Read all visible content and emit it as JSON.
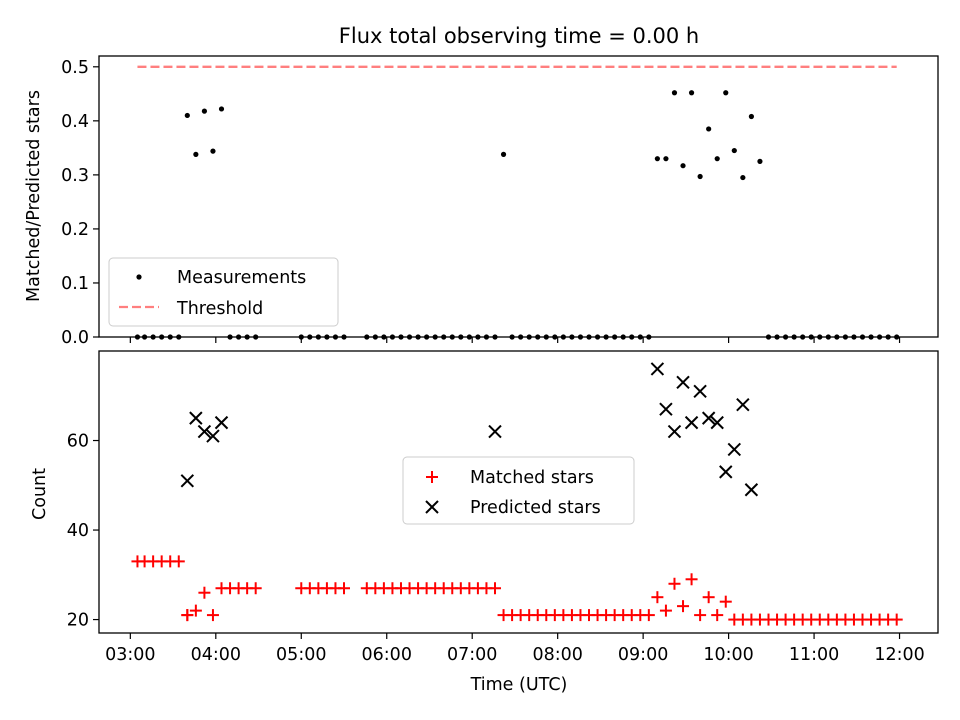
{
  "figure": {
    "title": "Flux total observing time = 0.00 h"
  },
  "x_axis": {
    "label": "Time (UTC)",
    "range": [
      "02:38",
      "12:27"
    ],
    "ticks": [
      "03:00",
      "04:00",
      "05:00",
      "06:00",
      "07:00",
      "08:00",
      "09:00",
      "10:00",
      "11:00",
      "12:00"
    ]
  },
  "chart_data": [
    {
      "type": "scatter",
      "ylabel": "Matched/Predicted stars",
      "ylim": [
        0,
        0.52
      ],
      "yticks": [
        "0.0",
        "0.1",
        "0.2",
        "0.3",
        "0.4",
        "0.5"
      ],
      "grid": false,
      "legend": {
        "position": "lower-left",
        "entries": [
          "Measurements",
          "Threshold"
        ]
      },
      "series": [
        {
          "name": "Measurements",
          "color": "#000000",
          "marker": "dot",
          "x": [
            "03:05",
            "03:10",
            "03:16",
            "03:22",
            "03:28",
            "03:34",
            "03:40",
            "03:46",
            "03:52",
            "03:58",
            "04:04",
            "04:10",
            "04:16",
            "04:22",
            "04:28",
            "05:00",
            "05:06",
            "05:12",
            "05:18",
            "05:24",
            "05:30",
            "05:46",
            "05:52",
            "05:58",
            "06:04",
            "06:10",
            "06:16",
            "06:22",
            "06:28",
            "06:34",
            "06:40",
            "06:46",
            "06:52",
            "06:58",
            "07:04",
            "07:10",
            "07:16",
            "07:22",
            "07:28",
            "07:34",
            "07:40",
            "07:46",
            "07:52",
            "07:58",
            "08:04",
            "08:10",
            "08:16",
            "08:22",
            "08:28",
            "08:34",
            "08:40",
            "08:46",
            "08:52",
            "08:58",
            "09:04",
            "09:10",
            "09:16",
            "09:22",
            "09:28",
            "09:34",
            "09:40",
            "09:46",
            "09:52",
            "09:58",
            "10:04",
            "10:10",
            "10:16",
            "10:22",
            "10:28",
            "10:34",
            "10:40",
            "10:46",
            "10:52",
            "10:58",
            "11:04",
            "11:10",
            "11:16",
            "11:22",
            "11:28",
            "11:34",
            "11:40",
            "11:46",
            "11:52",
            "11:58"
          ],
          "y": [
            0,
            0,
            0,
            0,
            0,
            0,
            0.41,
            0.338,
            0.418,
            0.344,
            0.422,
            0,
            0,
            0,
            0,
            0,
            0,
            0,
            0,
            0,
            0,
            0,
            0,
            0,
            0,
            0,
            0,
            0,
            0,
            0,
            0,
            0,
            0,
            0,
            0,
            0,
            0,
            0.338,
            0,
            0,
            0,
            0,
            0,
            0,
            0,
            0,
            0,
            0,
            0,
            0,
            0,
            0,
            0,
            0,
            0,
            0.33,
            0.33,
            0.452,
            0.317,
            0.452,
            0.297,
            0.385,
            0.33,
            0.452,
            0.345,
            0.295,
            0.408,
            0.325,
            0,
            0,
            0,
            0,
            0,
            0,
            0,
            0,
            0,
            0,
            0,
            0,
            0,
            0,
            0,
            0
          ]
        },
        {
          "name": "Threshold",
          "color": "#ff7f7f",
          "style": "dashed",
          "x": [
            "03:05",
            "11:58"
          ],
          "y": [
            0.5,
            0.5
          ]
        }
      ]
    },
    {
      "type": "scatter",
      "ylabel": "Count",
      "ylim": [
        17,
        80
      ],
      "yticks": [
        "20",
        "40",
        "60"
      ],
      "grid": false,
      "legend": {
        "position": "center",
        "entries": [
          "Matched stars",
          "Predicted stars"
        ]
      },
      "series": [
        {
          "name": "Matched stars",
          "color": "#ff0000",
          "marker": "plus",
          "x": [
            "03:05",
            "03:10",
            "03:16",
            "03:22",
            "03:28",
            "03:34",
            "03:40",
            "03:40",
            "03:46",
            "03:52",
            "03:58",
            "04:04",
            "04:10",
            "04:16",
            "04:22",
            "04:28",
            "05:00",
            "05:06",
            "05:12",
            "05:18",
            "05:24",
            "05:30",
            "05:46",
            "05:52",
            "05:58",
            "06:04",
            "06:10",
            "06:16",
            "06:22",
            "06:28",
            "06:34",
            "06:40",
            "06:46",
            "06:52",
            "06:58",
            "07:04",
            "07:10",
            "07:16",
            "07:22",
            "07:28",
            "07:34",
            "07:40",
            "07:46",
            "07:52",
            "07:58",
            "08:04",
            "08:10",
            "08:16",
            "08:22",
            "08:28",
            "08:34",
            "08:40",
            "08:46",
            "08:52",
            "08:58",
            "09:04",
            "09:10",
            "09:16",
            "09:22",
            "09:28",
            "09:34",
            "09:40",
            "09:46",
            "09:52",
            "09:58",
            "10:04",
            "10:10",
            "10:16",
            "10:22",
            "10:28",
            "10:34",
            "10:40",
            "10:46",
            "10:52",
            "10:58",
            "11:04",
            "11:10",
            "11:16",
            "11:22",
            "11:28",
            "11:34",
            "11:40",
            "11:46",
            "11:52",
            "11:58"
          ],
          "y": [
            33,
            33,
            33,
            33,
            33,
            33,
            21,
            21,
            22,
            26,
            21,
            27,
            27,
            27,
            27,
            27,
            27,
            27,
            27,
            27,
            27,
            27,
            27,
            27,
            27,
            27,
            27,
            27,
            27,
            27,
            27,
            27,
            27,
            27,
            27,
            27,
            27,
            27,
            21,
            21,
            21,
            21,
            21,
            21,
            21,
            21,
            21,
            21,
            21,
            21,
            21,
            21,
            21,
            21,
            21,
            21,
            25,
            22,
            28,
            23,
            29,
            21,
            25,
            21,
            24,
            20,
            20,
            20,
            20,
            20,
            20,
            20,
            20,
            20,
            20,
            20,
            20,
            20,
            20,
            20,
            20,
            20,
            20,
            20,
            20
          ]
        },
        {
          "name": "Predicted stars",
          "color": "#000000",
          "marker": "x",
          "x": [
            "03:40",
            "03:46",
            "03:52",
            "03:58",
            "04:04",
            "07:16",
            "09:10",
            "09:16",
            "09:22",
            "09:28",
            "09:34",
            "09:40",
            "09:46",
            "09:52",
            "09:58",
            "10:04",
            "10:10",
            "10:16"
          ],
          "y": [
            51,
            65,
            62,
            61,
            64,
            62,
            76,
            67,
            62,
            73,
            64,
            71,
            65,
            64,
            53,
            58,
            68,
            49
          ]
        }
      ]
    }
  ]
}
